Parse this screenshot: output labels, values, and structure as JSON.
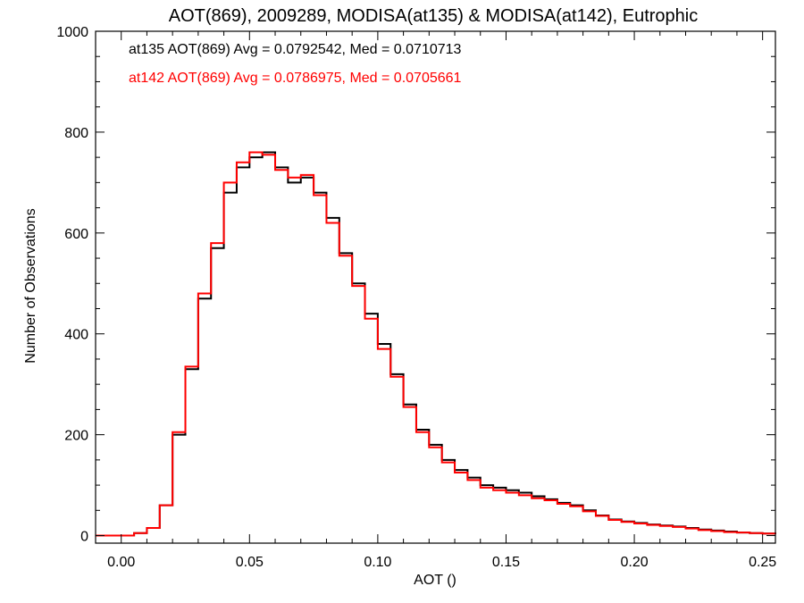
{
  "chart_data": {
    "type": "line",
    "title": "AOT(869), 2009289, MODISA(at135) & MODISA(at142), Eutrophic",
    "xlabel": "AOT ()",
    "ylabel": "Number of Observations",
    "xlim": [
      -0.01,
      0.255
    ],
    "ylim": [
      -15,
      1000
    ],
    "x_ticks": [
      0.0,
      0.05,
      0.1,
      0.15,
      0.2,
      0.25
    ],
    "x_tick_labels": [
      "0.00",
      "0.05",
      "0.10",
      "0.15",
      "0.20",
      "0.25"
    ],
    "y_ticks": [
      0,
      200,
      400,
      600,
      800,
      1000
    ],
    "y_tick_labels": [
      "0",
      "200",
      "400",
      "600",
      "800",
      "1000"
    ],
    "grid": false,
    "legend_position": "top-left",
    "series": [
      {
        "name": "at135",
        "legend": "at135 AOT(869) Avg = 0.0792542, Med = 0.0710713",
        "color": "#000000",
        "x": [
          -0.01,
          0.0,
          0.005,
          0.01,
          0.015,
          0.02,
          0.025,
          0.03,
          0.035,
          0.04,
          0.045,
          0.05,
          0.055,
          0.06,
          0.065,
          0.07,
          0.075,
          0.08,
          0.085,
          0.09,
          0.095,
          0.1,
          0.105,
          0.11,
          0.115,
          0.12,
          0.125,
          0.13,
          0.135,
          0.14,
          0.145,
          0.15,
          0.155,
          0.16,
          0.165,
          0.17,
          0.175,
          0.18,
          0.185,
          0.19,
          0.195,
          0.2,
          0.205,
          0.21,
          0.215,
          0.22,
          0.225,
          0.23,
          0.235,
          0.24,
          0.245,
          0.25,
          0.255
        ],
        "y": [
          0,
          0,
          5,
          15,
          60,
          200,
          330,
          470,
          570,
          680,
          730,
          750,
          760,
          730,
          700,
          710,
          680,
          630,
          560,
          500,
          440,
          380,
          320,
          260,
          210,
          180,
          150,
          130,
          115,
          100,
          95,
          90,
          85,
          78,
          72,
          65,
          60,
          50,
          40,
          32,
          28,
          25,
          22,
          20,
          18,
          15,
          12,
          10,
          8,
          6,
          5,
          4,
          3
        ]
      },
      {
        "name": "at142",
        "legend": "at142 AOT(869) Avg = 0.0786975, Med = 0.0705661",
        "color": "#ff0000",
        "x": [
          -0.01,
          0.0,
          0.005,
          0.01,
          0.015,
          0.02,
          0.025,
          0.03,
          0.035,
          0.04,
          0.045,
          0.05,
          0.055,
          0.06,
          0.065,
          0.07,
          0.075,
          0.08,
          0.085,
          0.09,
          0.095,
          0.1,
          0.105,
          0.11,
          0.115,
          0.12,
          0.125,
          0.13,
          0.135,
          0.14,
          0.145,
          0.15,
          0.155,
          0.16,
          0.165,
          0.17,
          0.175,
          0.18,
          0.185,
          0.19,
          0.195,
          0.2,
          0.205,
          0.21,
          0.215,
          0.22,
          0.225,
          0.23,
          0.235,
          0.24,
          0.245,
          0.25,
          0.255
        ],
        "y": [
          0,
          0,
          5,
          15,
          60,
          205,
          335,
          480,
          580,
          700,
          740,
          760,
          755,
          725,
          710,
          715,
          675,
          620,
          555,
          495,
          430,
          370,
          315,
          255,
          205,
          175,
          145,
          125,
          110,
          95,
          90,
          85,
          80,
          74,
          70,
          63,
          58,
          48,
          39,
          31,
          27,
          24,
          21,
          19,
          17,
          14,
          11,
          9,
          7,
          6,
          5,
          4,
          3
        ]
      }
    ]
  }
}
